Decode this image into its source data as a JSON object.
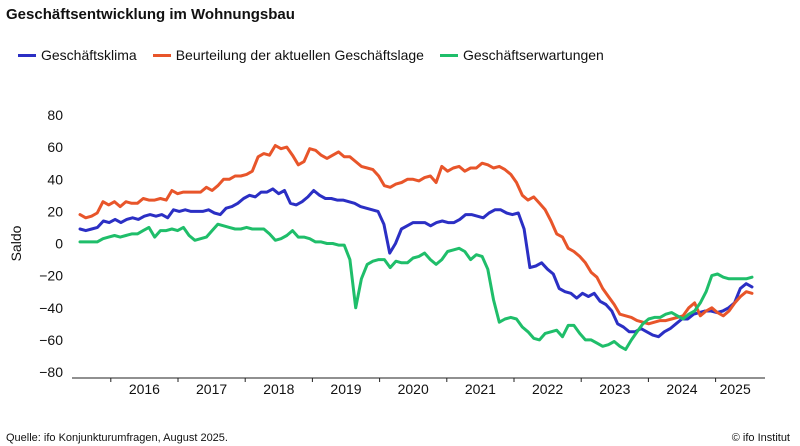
{
  "title": "Geschäftsentwicklung im Wohnungsbau",
  "footer": {
    "source": "Quelle: ifo Konjunkturumfragen,  August 2025.",
    "copyright": "© ifo Institut"
  },
  "chart_data": {
    "type": "line",
    "title": "Geschäftsentwicklung im Wohnungsbau",
    "xlabel": "",
    "ylabel": "Saldo",
    "ylim": [
      -80,
      80
    ],
    "yticks": [
      80,
      60,
      40,
      20,
      0,
      -20,
      -40,
      -60,
      -80
    ],
    "xticks": [
      "2016",
      "2017",
      "2018",
      "2019",
      "2020",
      "2021",
      "2022",
      "2023",
      "2024",
      "2025"
    ],
    "x_start": "2015-07",
    "x_end": "2025-07",
    "grid": false,
    "legend_position": "top",
    "series": [
      {
        "name": "Geschäftsklima",
        "color": "#2b2fc4",
        "values": [
          9,
          8,
          9,
          10,
          14,
          13,
          15,
          13,
          15,
          16,
          15,
          17,
          18,
          17,
          18,
          16,
          21,
          20,
          21,
          20,
          20,
          20,
          21,
          19,
          18,
          22,
          23,
          25,
          28,
          30,
          29,
          32,
          32,
          34,
          31,
          33,
          25,
          24,
          26,
          29,
          33,
          30,
          28,
          28,
          27,
          27,
          26,
          25,
          23,
          22,
          21,
          20,
          12,
          -6,
          0,
          9,
          11,
          13,
          13,
          13,
          11,
          13,
          14,
          13,
          13,
          15,
          18,
          18,
          17,
          16,
          19,
          21,
          21,
          19,
          18,
          19,
          9,
          -15,
          -14,
          -12,
          -16,
          -19,
          -28,
          -30,
          -31,
          -34,
          -31,
          -33,
          -31,
          -36,
          -38,
          -42,
          -50,
          -52,
          -55,
          -55,
          -53,
          -55,
          -57,
          -58,
          -55,
          -53,
          -50,
          -47,
          -47,
          -44,
          -43,
          -42,
          -42,
          -43,
          -42,
          -40,
          -37,
          -28,
          -25,
          -27
        ]
      },
      {
        "name": "Beurteilung der aktuellen Geschäftslage",
        "color": "#e8552a",
        "values": [
          18,
          16,
          17,
          19,
          26,
          24,
          26,
          23,
          26,
          25,
          25,
          28,
          27,
          27,
          28,
          27,
          33,
          31,
          32,
          32,
          32,
          32,
          35,
          33,
          36,
          40,
          40,
          42,
          42,
          43,
          45,
          54,
          56,
          55,
          61,
          59,
          60,
          55,
          49,
          51,
          59,
          58,
          55,
          53,
          55,
          57,
          54,
          54,
          51,
          48,
          47,
          46,
          42,
          36,
          35,
          37,
          38,
          40,
          40,
          39,
          41,
          42,
          38,
          48,
          45,
          47,
          48,
          45,
          47,
          47,
          50,
          49,
          47,
          48,
          46,
          43,
          38,
          30,
          27,
          29,
          25,
          21,
          14,
          6,
          4,
          -3,
          -5,
          -8,
          -12,
          -18,
          -21,
          -28,
          -33,
          -38,
          -44,
          -45,
          -46,
          -48,
          -49,
          -50,
          -49,
          -48,
          -48,
          -47,
          -46,
          -45,
          -40,
          -37,
          -45,
          -42,
          -40,
          -43,
          -45,
          -42,
          -37,
          -33,
          -30,
          -31
        ]
      },
      {
        "name": "Geschäftserwartungen",
        "color": "#1fbe6a",
        "values": [
          1,
          1,
          1,
          1,
          3,
          4,
          5,
          4,
          5,
          6,
          6,
          8,
          10,
          4,
          8,
          8,
          9,
          8,
          10,
          5,
          2,
          3,
          4,
          8,
          12,
          11,
          10,
          9,
          9,
          10,
          9,
          9,
          9,
          6,
          2,
          3,
          5,
          8,
          4,
          4,
          3,
          1,
          1,
          0,
          0,
          -1,
          -1,
          -10,
          -40,
          -22,
          -13,
          -11,
          -10,
          -10,
          -15,
          -11,
          -12,
          -12,
          -9,
          -8,
          -6,
          -10,
          -13,
          -10,
          -5,
          -4,
          -3,
          -5,
          -10,
          -7,
          -8,
          -16,
          -35,
          -49,
          -47,
          -46,
          -47,
          -52,
          -55,
          -59,
          -60,
          -56,
          -55,
          -54,
          -58,
          -51,
          -51,
          -56,
          -60,
          -60,
          -62,
          -64,
          -63,
          -61,
          -64,
          -66,
          -60,
          -55,
          -50,
          -47,
          -46,
          -46,
          -44,
          -43,
          -45,
          -47,
          -44,
          -42,
          -37,
          -30,
          -20,
          -19,
          -21,
          -22,
          -22,
          -22,
          -22,
          -21
        ]
      }
    ]
  }
}
